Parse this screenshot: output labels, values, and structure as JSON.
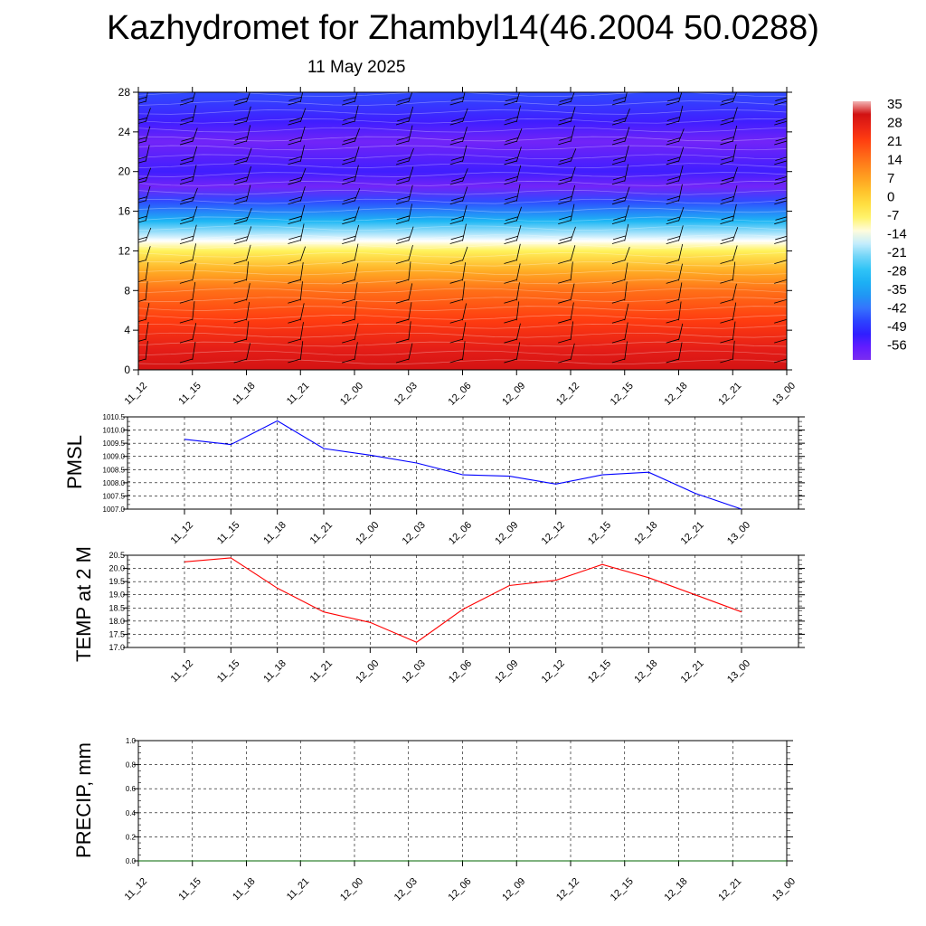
{
  "title": "Kazhydromet for Zhambyl14(46.2004 50.0288)",
  "subtitle": "11 May 2025",
  "time_labels": [
    "11_12",
    "11_15",
    "11_18",
    "11_21",
    "12_00",
    "12_03",
    "12_06",
    "12_09",
    "12_12",
    "12_15",
    "12_18",
    "12_21",
    "13_00"
  ],
  "colors": {
    "pmsl_line": "#0000ff",
    "temp_line": "#ff0000",
    "precip_line": "#006400",
    "grid": "#000000"
  },
  "chart_data": [
    {
      "type": "heatmap",
      "name": "temperature-vertical-section",
      "y_ticks": [
        0,
        4,
        8,
        12,
        16,
        20,
        24,
        28
      ],
      "ylim": [
        0,
        28
      ],
      "x": [
        "11_12",
        "11_15",
        "11_18",
        "11_21",
        "12_00",
        "12_03",
        "12_06",
        "12_09",
        "12_12",
        "12_15",
        "12_18",
        "12_21",
        "13_00"
      ],
      "profile": [
        {
          "level": 0,
          "value": 30
        },
        {
          "level": 2,
          "value": 27
        },
        {
          "level": 5,
          "value": 21
        },
        {
          "level": 8,
          "value": 14
        },
        {
          "level": 10,
          "value": 5
        },
        {
          "level": 12,
          "value": -7
        },
        {
          "level": 13,
          "value": -14
        },
        {
          "level": 15,
          "value": -30
        },
        {
          "level": 17,
          "value": -45
        },
        {
          "level": 18.5,
          "value": -58
        },
        {
          "level": 20,
          "value": -52
        },
        {
          "level": 23,
          "value": -58
        },
        {
          "level": 25,
          "value": -52
        },
        {
          "level": 28,
          "value": -45
        }
      ],
      "colorbar": {
        "labels": [
          "35",
          "28",
          "21",
          "14",
          "7",
          "0",
          "-7",
          "-14",
          "-21",
          "-28",
          "-35",
          "-42",
          "-49",
          "-56"
        ],
        "values": [
          35,
          28,
          21,
          14,
          7,
          0,
          -7,
          -14,
          -21,
          -28,
          -35,
          -42,
          -49,
          -56
        ]
      },
      "wind_barbs": true
    },
    {
      "type": "line",
      "name": "PMSL",
      "ylabel": "PMSL",
      "ylim": [
        1007.0,
        1010.5
      ],
      "y_ticks": [
        "1010.5",
        "1010.0",
        "1009.5",
        "1009.0",
        "1008.5",
        "1008.0",
        "1007.5",
        "1007.0"
      ],
      "x": [
        "11_12",
        "11_15",
        "11_18",
        "11_21",
        "12_00",
        "12_03",
        "12_06",
        "12_09",
        "12_12",
        "12_15",
        "12_18",
        "12_21",
        "13_00"
      ],
      "values": [
        1009.65,
        1009.45,
        1010.35,
        1009.3,
        1009.05,
        1008.75,
        1008.3,
        1008.25,
        1007.95,
        1008.3,
        1008.4,
        1007.6,
        1007.0
      ]
    },
    {
      "type": "line",
      "name": "TEMP at 2 M",
      "ylabel": "TEMP at 2 M",
      "ylim": [
        17.0,
        20.5
      ],
      "y_ticks": [
        "20.5",
        "20.0",
        "19.5",
        "19.0",
        "18.5",
        "18.0",
        "17.5",
        "17.0"
      ],
      "x": [
        "11_12",
        "11_15",
        "11_18",
        "11_21",
        "12_00",
        "12_03",
        "12_06",
        "12_09",
        "12_12",
        "12_15",
        "12_18",
        "12_21",
        "13_00"
      ],
      "values": [
        20.25,
        20.4,
        19.25,
        18.35,
        17.95,
        17.2,
        18.45,
        19.35,
        19.55,
        20.15,
        19.65,
        19.0,
        18.35
      ]
    },
    {
      "type": "line",
      "name": "PRECIP, mm",
      "ylabel": "PRECIP, mm",
      "ylim": [
        0.0,
        1.0
      ],
      "y_ticks": [
        "1.0",
        "0.8",
        "0.6",
        "0.4",
        "0.2",
        "0.0"
      ],
      "x": [
        "11_12",
        "11_15",
        "11_18",
        "11_21",
        "12_00",
        "12_03",
        "12_06",
        "12_09",
        "12_12",
        "12_15",
        "12_18",
        "12_21",
        "13_00"
      ],
      "values": [
        0,
        0,
        0,
        0,
        0,
        0,
        0,
        0,
        0,
        0,
        0,
        0,
        0
      ]
    }
  ]
}
